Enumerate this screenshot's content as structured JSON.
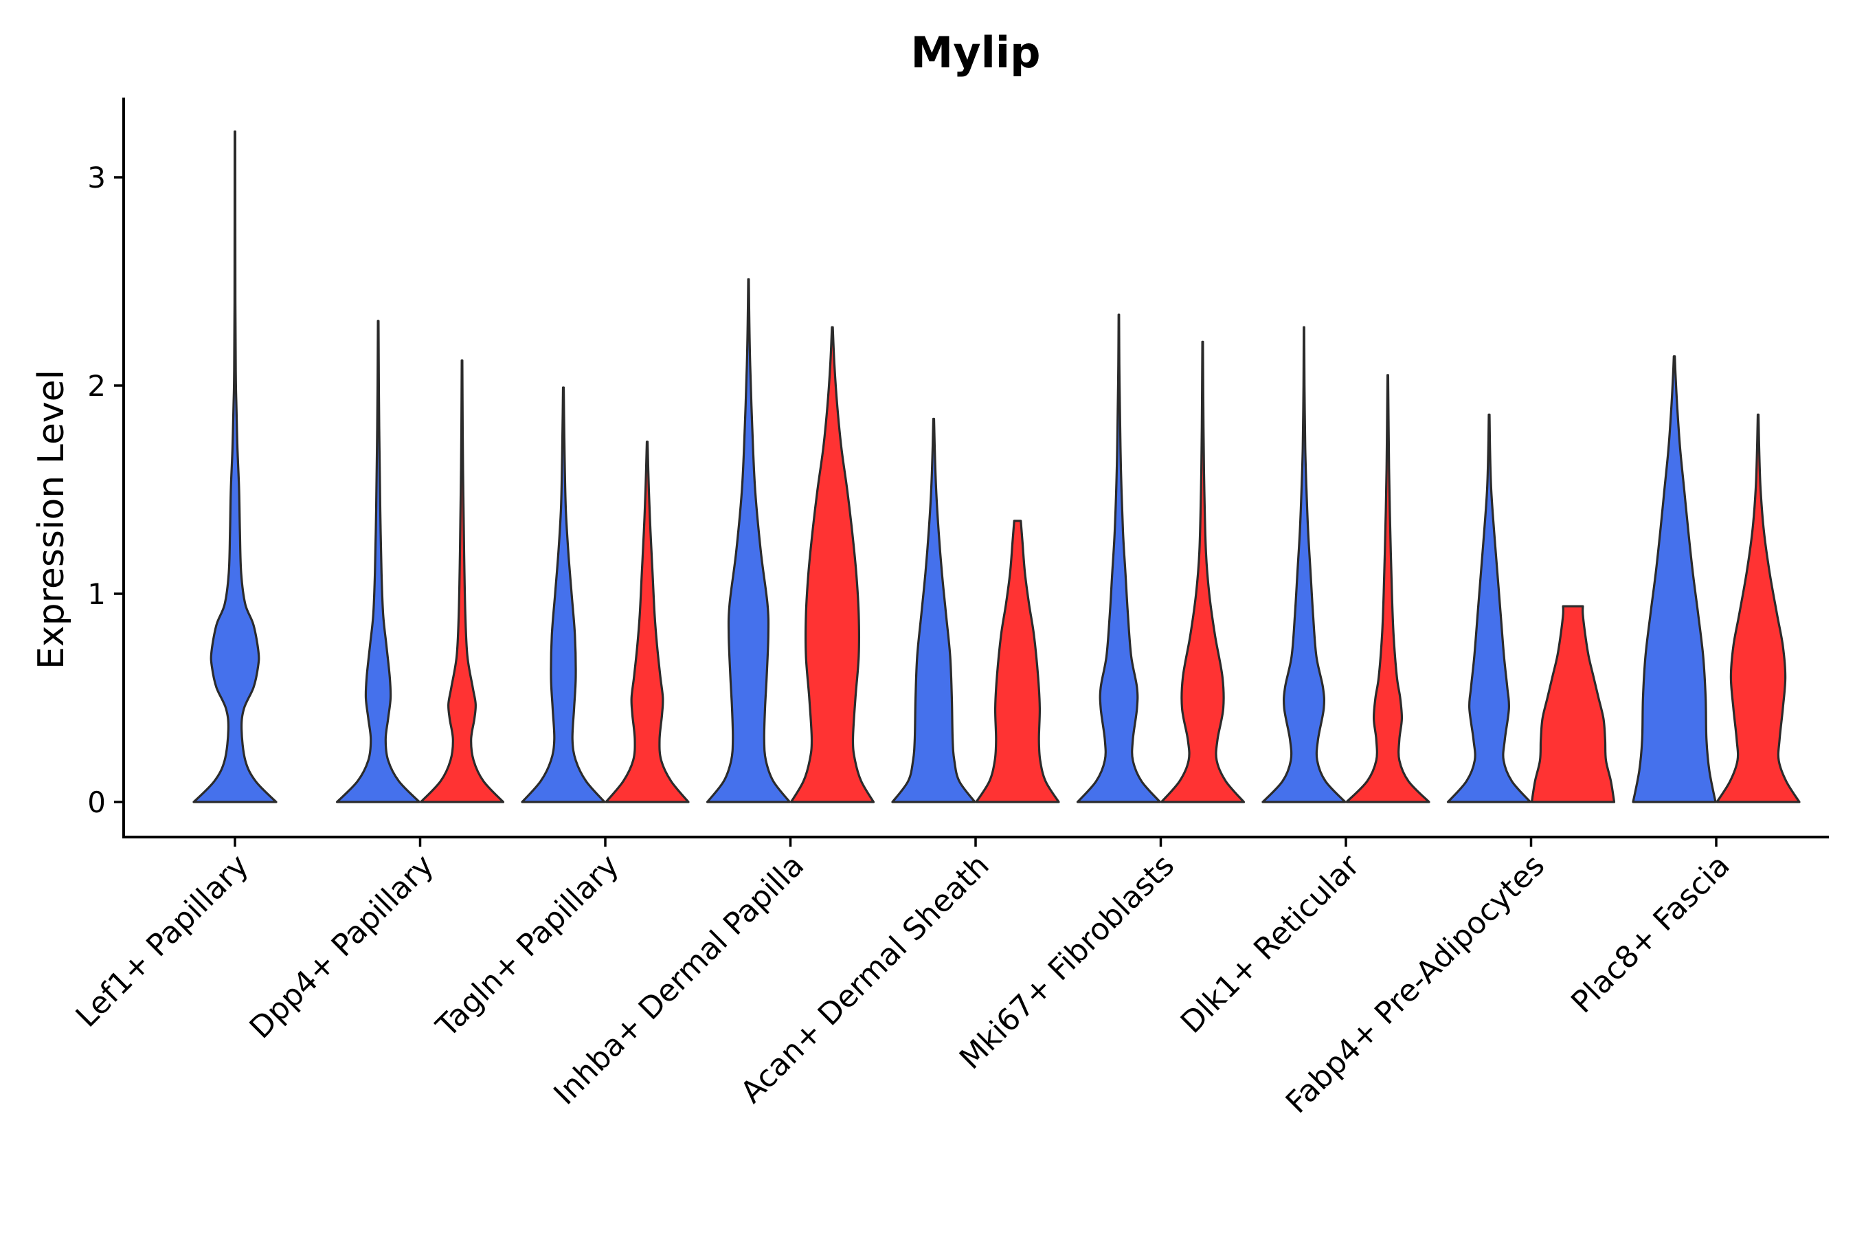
{
  "chart_data": {
    "type": "violin",
    "title": "Mylip",
    "xlabel": "",
    "ylabel": "Expression Level",
    "ylim": [
      -0.16,
      3.38
    ],
    "yticks": [
      0,
      1,
      2,
      3
    ],
    "categories": [
      "Lef1+ Papillary",
      "Dpp4+ Papillary",
      "Tagln+ Papillary",
      "Inhba+ Dermal Papilla",
      "Acan+ Dermal Sheath",
      "Mki67+ Fibroblasts",
      "Dlk1+ Reticular",
      "Fabp4+ Pre-Adipocytes",
      "Plac8+ Fascia"
    ],
    "colors": {
      "blue": "#4571EC",
      "red": "#FF3333",
      "outline": "#2b2b2b"
    },
    "series": [
      {
        "name": "blue",
        "color": "#4571EC",
        "violins": [
          {
            "max": 3.22,
            "profile": [
              [
                0,
                1
              ],
              [
                0.1,
                0.5
              ],
              [
                0.2,
                0.25
              ],
              [
                0.35,
                0.16
              ],
              [
                0.45,
                0.22
              ],
              [
                0.55,
                0.45
              ],
              [
                0.65,
                0.56
              ],
              [
                0.72,
                0.57
              ],
              [
                0.85,
                0.45
              ],
              [
                0.95,
                0.25
              ],
              [
                1.1,
                0.15
              ],
              [
                1.3,
                0.12
              ],
              [
                1.5,
                0.1
              ],
              [
                1.7,
                0.06
              ],
              [
                1.9,
                0.035
              ],
              [
                2.05,
                0.02
              ],
              [
                2.4,
                0.01
              ],
              [
                3.22,
                0.006
              ]
            ]
          },
          {
            "max": 2.31,
            "profile": [
              [
                0,
                1
              ],
              [
                0.1,
                0.5
              ],
              [
                0.2,
                0.24
              ],
              [
                0.3,
                0.18
              ],
              [
                0.4,
                0.24
              ],
              [
                0.5,
                0.3
              ],
              [
                0.6,
                0.28
              ],
              [
                0.75,
                0.2
              ],
              [
                0.9,
                0.12
              ],
              [
                1.1,
                0.08
              ],
              [
                1.4,
                0.05
              ],
              [
                1.7,
                0.03
              ],
              [
                2.0,
                0.015
              ],
              [
                2.31,
                0.006
              ]
            ]
          },
          {
            "max": 1.99,
            "profile": [
              [
                0,
                1
              ],
              [
                0.1,
                0.55
              ],
              [
                0.2,
                0.3
              ],
              [
                0.3,
                0.22
              ],
              [
                0.45,
                0.26
              ],
              [
                0.6,
                0.3
              ],
              [
                0.8,
                0.28
              ],
              [
                1.0,
                0.2
              ],
              [
                1.2,
                0.12
              ],
              [
                1.4,
                0.06
              ],
              [
                1.6,
                0.035
              ],
              [
                1.8,
                0.02
              ],
              [
                1.99,
                0.008
              ]
            ]
          },
          {
            "max": 2.51,
            "profile": [
              [
                0,
                1
              ],
              [
                0.1,
                0.6
              ],
              [
                0.2,
                0.42
              ],
              [
                0.3,
                0.38
              ],
              [
                0.45,
                0.4
              ],
              [
                0.6,
                0.44
              ],
              [
                0.8,
                0.48
              ],
              [
                0.95,
                0.46
              ],
              [
                1.2,
                0.3
              ],
              [
                1.5,
                0.16
              ],
              [
                1.8,
                0.09
              ],
              [
                2.1,
                0.04
              ],
              [
                2.3,
                0.02
              ],
              [
                2.51,
                0.006
              ]
            ]
          },
          {
            "max": 1.84,
            "profile": [
              [
                0,
                1
              ],
              [
                0.1,
                0.62
              ],
              [
                0.2,
                0.5
              ],
              [
                0.3,
                0.46
              ],
              [
                0.5,
                0.44
              ],
              [
                0.7,
                0.4
              ],
              [
                0.9,
                0.3
              ],
              [
                1.1,
                0.2
              ],
              [
                1.3,
                0.12
              ],
              [
                1.5,
                0.06
              ],
              [
                1.7,
                0.025
              ],
              [
                1.84,
                0.008
              ]
            ]
          },
          {
            "max": 2.34,
            "profile": [
              [
                0,
                1
              ],
              [
                0.1,
                0.55
              ],
              [
                0.2,
                0.34
              ],
              [
                0.3,
                0.34
              ],
              [
                0.45,
                0.44
              ],
              [
                0.55,
                0.44
              ],
              [
                0.7,
                0.3
              ],
              [
                0.9,
                0.22
              ],
              [
                1.1,
                0.16
              ],
              [
                1.3,
                0.1
              ],
              [
                1.6,
                0.05
              ],
              [
                1.9,
                0.025
              ],
              [
                2.1,
                0.012
              ],
              [
                2.34,
                0.005
              ]
            ]
          },
          {
            "max": 2.28,
            "profile": [
              [
                0,
                1
              ],
              [
                0.1,
                0.52
              ],
              [
                0.2,
                0.32
              ],
              [
                0.3,
                0.34
              ],
              [
                0.45,
                0.48
              ],
              [
                0.55,
                0.46
              ],
              [
                0.7,
                0.3
              ],
              [
                0.9,
                0.22
              ],
              [
                1.1,
                0.16
              ],
              [
                1.3,
                0.1
              ],
              [
                1.5,
                0.06
              ],
              [
                1.7,
                0.03
              ],
              [
                2.0,
                0.012
              ],
              [
                2.28,
                0.005
              ]
            ]
          },
          {
            "max": 1.86,
            "profile": [
              [
                0,
                1
              ],
              [
                0.1,
                0.55
              ],
              [
                0.2,
                0.35
              ],
              [
                0.3,
                0.38
              ],
              [
                0.45,
                0.48
              ],
              [
                0.55,
                0.44
              ],
              [
                0.7,
                0.36
              ],
              [
                0.9,
                0.28
              ],
              [
                1.1,
                0.2
              ],
              [
                1.3,
                0.12
              ],
              [
                1.5,
                0.05
              ],
              [
                1.7,
                0.02
              ],
              [
                1.86,
                0.008
              ]
            ]
          },
          {
            "max": 2.14,
            "profile": [
              [
                0,
                1
              ],
              [
                0.15,
                0.85
              ],
              [
                0.3,
                0.78
              ],
              [
                0.5,
                0.76
              ],
              [
                0.7,
                0.7
              ],
              [
                0.9,
                0.58
              ],
              [
                1.1,
                0.45
              ],
              [
                1.3,
                0.34
              ],
              [
                1.5,
                0.24
              ],
              [
                1.7,
                0.14
              ],
              [
                1.9,
                0.07
              ],
              [
                2.05,
                0.03
              ],
              [
                2.14,
                0.012
              ]
            ]
          }
        ]
      },
      {
        "name": "red",
        "color": "#FF3333",
        "violins": [
          null,
          {
            "max": 2.12,
            "profile": [
              [
                0,
                1
              ],
              [
                0.1,
                0.52
              ],
              [
                0.2,
                0.28
              ],
              [
                0.3,
                0.22
              ],
              [
                0.4,
                0.3
              ],
              [
                0.47,
                0.33
              ],
              [
                0.55,
                0.26
              ],
              [
                0.7,
                0.13
              ],
              [
                0.9,
                0.08
              ],
              [
                1.2,
                0.05
              ],
              [
                1.5,
                0.03
              ],
              [
                1.8,
                0.015
              ],
              [
                2.12,
                0.006
              ]
            ]
          },
          {
            "max": 1.73,
            "profile": [
              [
                0,
                1
              ],
              [
                0.1,
                0.58
              ],
              [
                0.2,
                0.34
              ],
              [
                0.3,
                0.3
              ],
              [
                0.42,
                0.36
              ],
              [
                0.5,
                0.38
              ],
              [
                0.6,
                0.32
              ],
              [
                0.75,
                0.24
              ],
              [
                0.9,
                0.18
              ],
              [
                1.1,
                0.13
              ],
              [
                1.3,
                0.08
              ],
              [
                1.5,
                0.04
              ],
              [
                1.73,
                0.008
              ]
            ]
          },
          {
            "max": 2.28,
            "profile": [
              [
                0,
                1
              ],
              [
                0.1,
                0.7
              ],
              [
                0.2,
                0.55
              ],
              [
                0.3,
                0.5
              ],
              [
                0.5,
                0.56
              ],
              [
                0.7,
                0.64
              ],
              [
                0.9,
                0.64
              ],
              [
                1.1,
                0.58
              ],
              [
                1.3,
                0.48
              ],
              [
                1.5,
                0.36
              ],
              [
                1.7,
                0.22
              ],
              [
                1.9,
                0.12
              ],
              [
                2.1,
                0.05
              ],
              [
                2.28,
                0.01
              ]
            ]
          },
          {
            "max": 1.35,
            "profile": [
              [
                0,
                1
              ],
              [
                0.1,
                0.68
              ],
              [
                0.2,
                0.55
              ],
              [
                0.3,
                0.52
              ],
              [
                0.45,
                0.54
              ],
              [
                0.6,
                0.5
              ],
              [
                0.8,
                0.4
              ],
              [
                0.95,
                0.28
              ],
              [
                1.1,
                0.18
              ],
              [
                1.25,
                0.12
              ],
              [
                1.35,
                0.08
              ]
            ]
          },
          {
            "max": 2.21,
            "profile": [
              [
                0,
                1
              ],
              [
                0.1,
                0.56
              ],
              [
                0.2,
                0.34
              ],
              [
                0.3,
                0.36
              ],
              [
                0.45,
                0.5
              ],
              [
                0.6,
                0.48
              ],
              [
                0.8,
                0.3
              ],
              [
                1.0,
                0.16
              ],
              [
                1.2,
                0.08
              ],
              [
                1.5,
                0.04
              ],
              [
                1.8,
                0.02
              ],
              [
                2.21,
                0.006
              ]
            ]
          },
          {
            "max": 2.05,
            "profile": [
              [
                0,
                1
              ],
              [
                0.1,
                0.5
              ],
              [
                0.2,
                0.28
              ],
              [
                0.3,
                0.28
              ],
              [
                0.4,
                0.34
              ],
              [
                0.5,
                0.3
              ],
              [
                0.6,
                0.22
              ],
              [
                0.8,
                0.14
              ],
              [
                1.0,
                0.1
              ],
              [
                1.3,
                0.06
              ],
              [
                1.6,
                0.03
              ],
              [
                2.05,
                0.006
              ]
            ]
          },
          {
            "max": 0.94,
            "profile": [
              [
                0,
                1
              ],
              [
                0.1,
                0.92
              ],
              [
                0.2,
                0.8
              ],
              [
                0.3,
                0.78
              ],
              [
                0.4,
                0.74
              ],
              [
                0.5,
                0.62
              ],
              [
                0.6,
                0.5
              ],
              [
                0.7,
                0.38
              ],
              [
                0.8,
                0.3
              ],
              [
                0.9,
                0.24
              ],
              [
                0.94,
                0.24
              ]
            ]
          },
          {
            "max": 1.86,
            "profile": [
              [
                0,
                1
              ],
              [
                0.1,
                0.68
              ],
              [
                0.2,
                0.5
              ],
              [
                0.3,
                0.52
              ],
              [
                0.45,
                0.6
              ],
              [
                0.6,
                0.66
              ],
              [
                0.75,
                0.6
              ],
              [
                0.9,
                0.46
              ],
              [
                1.1,
                0.28
              ],
              [
                1.3,
                0.14
              ],
              [
                1.5,
                0.06
              ],
              [
                1.7,
                0.025
              ],
              [
                1.86,
                0.008
              ]
            ]
          }
        ]
      }
    ]
  }
}
